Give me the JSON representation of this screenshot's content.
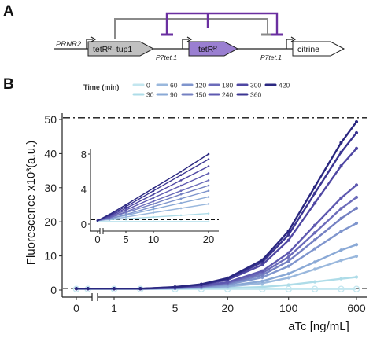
{
  "panels": {
    "a": "A",
    "b": "B"
  },
  "diagram": {
    "promoter_rnr2": "PRNR2",
    "gene_feedback": "tetRᴿ–tup1",
    "promoter_tet_1": "P7tet.1",
    "gene_tetr": "tetRᴿ",
    "promoter_tet_2": "P7tet.1",
    "gene_reporter": "citrine",
    "colors": {
      "inhibition": "#6a2fa0",
      "feedback": "#8a8a8a",
      "tetr_box": "#9a7fd1",
      "fusion_box": "#c0c0c0"
    }
  },
  "legend": {
    "title": "Time (min)",
    "items": [
      {
        "label": "0",
        "color": "#c3e6ef"
      },
      {
        "label": "30",
        "color": "#aedce8"
      },
      {
        "label": "60",
        "color": "#9ab8dd"
      },
      {
        "label": "90",
        "color": "#8aa9d6"
      },
      {
        "label": "120",
        "color": "#7f95cd"
      },
      {
        "label": "150",
        "color": "#7480c2"
      },
      {
        "label": "180",
        "color": "#6c6cba"
      },
      {
        "label": "240",
        "color": "#5e59b0"
      },
      {
        "label": "300",
        "color": "#4f47a3"
      },
      {
        "label": "360",
        "color": "#3b3592"
      },
      {
        "label": "420",
        "color": "#2a2780"
      }
    ]
  },
  "chart_data": [
    {
      "type": "line",
      "title": "",
      "xlabel": "aTc [ng/mL]",
      "ylabel": "Fluorescence x10³(a.u.)",
      "x_scale": "log with axis break after 0",
      "x_ticks": [
        "0",
        "1",
        "5",
        "20",
        "100",
        "600"
      ],
      "y_ticks": [
        "0",
        "10",
        "20",
        "30",
        "40",
        "50"
      ],
      "ylim": [
        0,
        52
      ],
      "reference_lines": [
        {
          "y": 50.5,
          "style": "dash-dot"
        },
        {
          "y": 0.5,
          "style": "dashed"
        }
      ],
      "x": [
        0,
        0.5,
        1,
        2,
        5,
        10,
        20,
        50,
        100,
        200,
        400,
        600
      ],
      "series": [
        {
          "name": "0",
          "values": [
            0.3,
            0.3,
            0.3,
            0.3,
            0.3,
            0.3,
            0.3,
            0.3,
            0.3,
            0.3,
            0.3,
            0.3
          ]
        },
        {
          "name": "30",
          "values": [
            0.4,
            0.4,
            0.4,
            0.4,
            0.4,
            0.5,
            0.6,
            0.9,
            1.5,
            2.4,
            3.3,
            3.8
          ]
        },
        {
          "name": "60",
          "values": [
            0.4,
            0.4,
            0.4,
            0.4,
            0.5,
            0.7,
            1.0,
            2.0,
            3.6,
            6.1,
            8.7,
            9.9
          ]
        },
        {
          "name": "90",
          "values": [
            0.4,
            0.4,
            0.4,
            0.4,
            0.5,
            0.7,
            1.2,
            2.6,
            4.8,
            8.2,
            11.7,
            13.3
          ]
        },
        {
          "name": "120",
          "values": [
            0.4,
            0.4,
            0.4,
            0.4,
            0.6,
            0.9,
            1.6,
            3.7,
            7.0,
            12.1,
            17.2,
            19.6
          ]
        },
        {
          "name": "150",
          "values": [
            0.4,
            0.4,
            0.4,
            0.4,
            0.6,
            1.0,
            1.9,
            4.4,
            8.5,
            14.7,
            21.0,
            24.0
          ]
        },
        {
          "name": "180",
          "values": [
            0.4,
            0.4,
            0.4,
            0.4,
            0.6,
            1.1,
            2.1,
            5.0,
            9.7,
            16.8,
            23.9,
            27.2
          ]
        },
        {
          "name": "240",
          "values": [
            0.4,
            0.4,
            0.4,
            0.4,
            0.7,
            1.2,
            2.3,
            5.6,
            10.9,
            19.0,
            27.0,
            30.8
          ]
        },
        {
          "name": "300",
          "values": [
            0.4,
            0.4,
            0.4,
            0.4,
            0.8,
            1.5,
            3.0,
            7.4,
            14.6,
            25.5,
            36.4,
            41.5
          ]
        },
        {
          "name": "360",
          "values": [
            0.4,
            0.4,
            0.4,
            0.4,
            0.8,
            1.6,
            3.3,
            8.2,
            16.2,
            28.4,
            40.4,
            46.1
          ]
        },
        {
          "name": "420",
          "values": [
            0.4,
            0.4,
            0.4,
            0.4,
            0.9,
            1.7,
            3.5,
            8.8,
            17.3,
            30.3,
            43.2,
            49.3
          ]
        }
      ]
    },
    {
      "type": "line",
      "title": "",
      "xlabel": "",
      "ylabel": "",
      "x_scale": "linear with axis break after 0",
      "x_ticks": [
        "0",
        "5",
        "10",
        "20"
      ],
      "y_ticks": [
        "0",
        "4",
        "8"
      ],
      "xlim": [
        0,
        22
      ],
      "ylim": [
        0,
        8.4
      ],
      "reference_lines": [
        {
          "y": 0.5,
          "style": "dashed"
        }
      ],
      "x": [
        0,
        2,
        5,
        10,
        15,
        20
      ],
      "series": [
        {
          "name": "0",
          "values": [
            0.3,
            0.3,
            0.3,
            0.3,
            0.3,
            0.3
          ]
        },
        {
          "name": "30",
          "values": [
            0.4,
            0.5,
            0.6,
            0.8,
            1.0,
            1.2
          ]
        },
        {
          "name": "60",
          "values": [
            0.4,
            0.5,
            0.8,
            1.3,
            1.8,
            2.3
          ]
        },
        {
          "name": "90",
          "values": [
            0.4,
            0.6,
            1.0,
            1.7,
            2.4,
            3.1
          ]
        },
        {
          "name": "120",
          "values": [
            0.4,
            0.6,
            1.1,
            2.0,
            2.9,
            3.8
          ]
        },
        {
          "name": "150",
          "values": [
            0.4,
            0.7,
            1.3,
            2.3,
            3.4,
            4.4
          ]
        },
        {
          "name": "180",
          "values": [
            0.4,
            0.7,
            1.4,
            2.6,
            3.8,
            5.0
          ]
        },
        {
          "name": "240",
          "values": [
            0.4,
            0.8,
            1.6,
            3.0,
            4.4,
            5.8
          ]
        },
        {
          "name": "300",
          "values": [
            0.4,
            0.9,
            1.8,
            3.4,
            5.0,
            6.6
          ]
        },
        {
          "name": "360",
          "values": [
            0.4,
            1.0,
            2.0,
            3.8,
            5.6,
            7.4
          ]
        },
        {
          "name": "420",
          "values": [
            0.4,
            1.1,
            2.2,
            4.1,
            6.0,
            8.0
          ]
        }
      ]
    }
  ]
}
